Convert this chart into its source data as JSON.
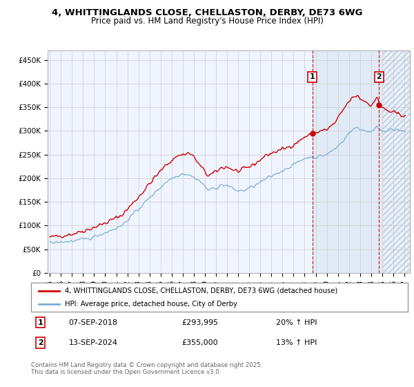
{
  "title": "4, WHITTINGLANDS CLOSE, CHELLASTON, DERBY, DE73 6WG",
  "subtitle": "Price paid vs. HM Land Registry's House Price Index (HPI)",
  "legend_line1": "4, WHITTINGLANDS CLOSE, CHELLASTON, DERBY, DE73 6WG (detached house)",
  "legend_line2": "HPI: Average price, detached house, City of Derby",
  "annotation1_date": "07-SEP-2018",
  "annotation1_price": "£293,995",
  "annotation1_hpi": "20% ↑ HPI",
  "annotation2_date": "13-SEP-2024",
  "annotation2_price": "£355,000",
  "annotation2_hpi": "13% ↑ HPI",
  "footer": "Contains HM Land Registry data © Crown copyright and database right 2025.\nThis data is licensed under the Open Government Licence v3.0.",
  "red_color": "#cc0000",
  "blue_color": "#7bafd4",
  "background_color": "#ffffff",
  "plot_bg_color": "#f0f4ff",
  "grid_color": "#cccccc",
  "hatch_bg_color": "#e8eef8",
  "shade_bg_color": "#dce8f5",
  "ylim": [
    0,
    470000
  ],
  "xlim_start": 1994.8,
  "xlim_end": 2027.5,
  "transaction1_x": 2018.69,
  "transaction1_y": 293995,
  "transaction2_x": 2024.71,
  "transaction2_y": 355000,
  "hatch_start": 2025.08,
  "shade_start": 2018.69
}
